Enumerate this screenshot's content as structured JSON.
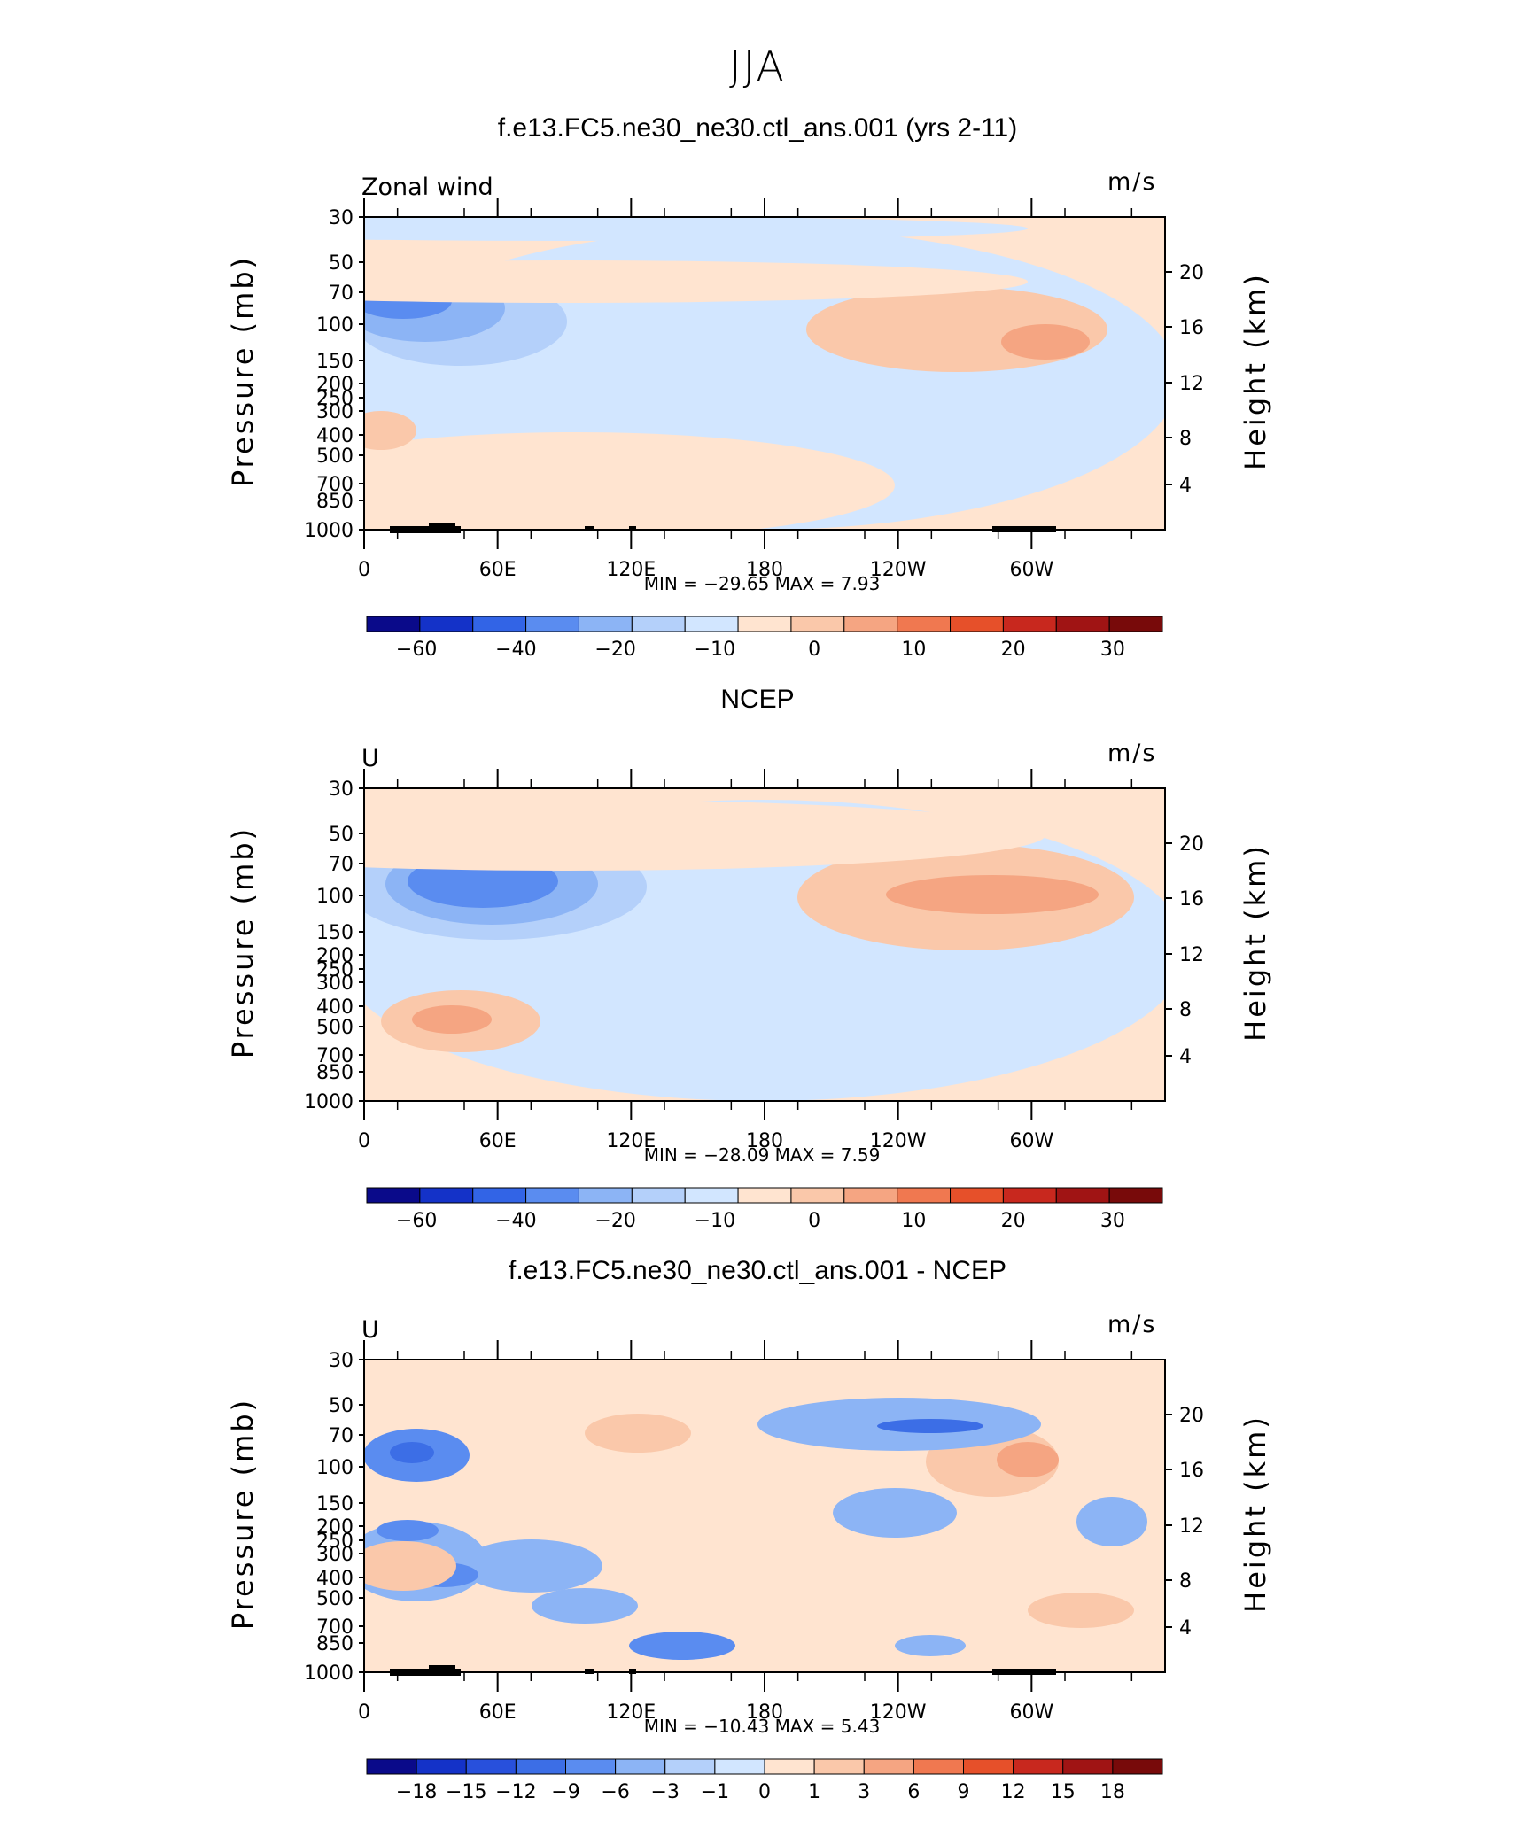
{
  "figure_title": "JJA",
  "chart_data": [
    {
      "type": "heatmap",
      "title": "f.e13.FC5.ne30_ne30.ctl_ans.001 (yrs 2-11)",
      "variable": "Zonal wind",
      "units": "m/s",
      "ylabel": "Pressure (mb)",
      "ylabel_right": "Height (km)",
      "pressure_ticks": [
        "30",
        "50",
        "70",
        "100",
        "150",
        "200",
        "250",
        "300",
        "400",
        "500",
        "700",
        "850",
        "1000"
      ],
      "height_ticks": [
        "20",
        "16",
        "12",
        "8",
        "4"
      ],
      "x_ticks": [
        "0",
        "60E",
        "120E",
        "180",
        "120W",
        "60W"
      ],
      "stats_text": "MIN = −29.65   MAX =     7.93",
      "min": -29.65,
      "max": 7.93,
      "colorbar_levels": [
        "−60",
        "−40",
        "−20",
        "−10",
        "0",
        "10",
        "20",
        "30"
      ],
      "colorbar_colors": [
        "#0a0a8a",
        "#1432c8",
        "#3264e6",
        "#5a8cf0",
        "#8cb4f5",
        "#b4d0fa",
        "#d2e6ff",
        "#ffe4d0",
        "#fac8aa",
        "#f5a582",
        "#f07850",
        "#e6502a",
        "#c8281e",
        "#a01414",
        "#780a0a"
      ]
    },
    {
      "type": "heatmap",
      "title": "NCEP",
      "variable": "U",
      "units": "m/s",
      "ylabel": "Pressure (mb)",
      "ylabel_right": "Height (km)",
      "pressure_ticks": [
        "30",
        "50",
        "70",
        "100",
        "150",
        "200",
        "250",
        "300",
        "400",
        "500",
        "700",
        "850",
        "1000"
      ],
      "height_ticks": [
        "20",
        "16",
        "12",
        "8",
        "4"
      ],
      "x_ticks": [
        "0",
        "60E",
        "120E",
        "180",
        "120W",
        "60W"
      ],
      "stats_text": "MIN = −28.09   MAX =     7.59",
      "min": -28.09,
      "max": 7.59,
      "colorbar_levels": [
        "−60",
        "−40",
        "−20",
        "−10",
        "0",
        "10",
        "20",
        "30"
      ],
      "colorbar_colors": [
        "#0a0a8a",
        "#1432c8",
        "#3264e6",
        "#5a8cf0",
        "#8cb4f5",
        "#b4d0fa",
        "#d2e6ff",
        "#ffe4d0",
        "#fac8aa",
        "#f5a582",
        "#f07850",
        "#e6502a",
        "#c8281e",
        "#a01414",
        "#780a0a"
      ]
    },
    {
      "type": "heatmap",
      "title": "f.e13.FC5.ne30_ne30.ctl_ans.001 - NCEP",
      "variable": "U",
      "units": "m/s",
      "ylabel": "Pressure (mb)",
      "ylabel_right": "Height (km)",
      "pressure_ticks": [
        "30",
        "50",
        "70",
        "100",
        "150",
        "200",
        "250",
        "300",
        "400",
        "500",
        "700",
        "850",
        "1000"
      ],
      "height_ticks": [
        "20",
        "16",
        "12",
        "8",
        "4"
      ],
      "x_ticks": [
        "0",
        "60E",
        "120E",
        "180",
        "120W",
        "60W"
      ],
      "stats_text": "MIN = −10.43   MAX =     5.43",
      "min": -10.43,
      "max": 5.43,
      "colorbar_levels": [
        "−18",
        "−15",
        "−12",
        "−9",
        "−6",
        "−3",
        "−1",
        "0",
        "1",
        "3",
        "6",
        "9",
        "12",
        "15",
        "18"
      ],
      "colorbar_colors": [
        "#0a0a8a",
        "#1432c8",
        "#2850dc",
        "#3c6ee6",
        "#5a8cf0",
        "#8cb4f5",
        "#b4d0fa",
        "#d2e6ff",
        "#ffe4d0",
        "#fac8aa",
        "#f5a582",
        "#f07850",
        "#e6502a",
        "#c8281e",
        "#a01414",
        "#780a0a"
      ]
    }
  ]
}
